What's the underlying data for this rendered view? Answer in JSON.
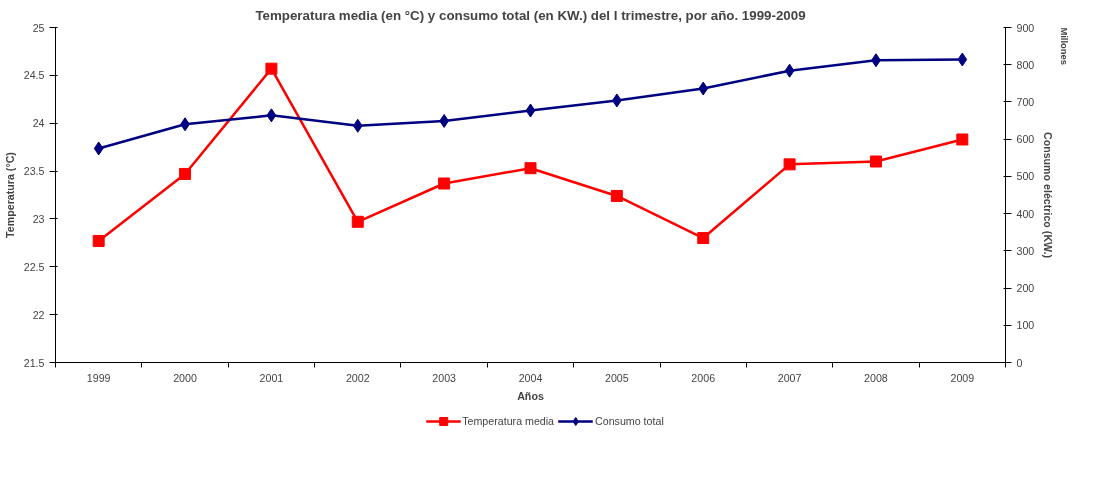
{
  "chart_data": {
    "type": "line",
    "title": "Temperatura media (en °C) y consumo total (en KW.) del I trimestre, por año. 1999-2009",
    "xlabel": "Años",
    "ylabel": "Temperatura (°C)",
    "y2label": "Consumo eléctrico (KW.)",
    "annotations": [
      "Millones"
    ],
    "categories": [
      "1999",
      "2000",
      "2001",
      "2002",
      "2003",
      "2004",
      "2005",
      "2006",
      "2007",
      "2008",
      "2009"
    ],
    "series": [
      {
        "name": "Temperatura media",
        "color": "#ff0000",
        "marker": "square",
        "values": [
          22.77,
          23.47,
          24.57,
          22.97,
          23.37,
          23.53,
          23.24,
          22.8,
          23.57,
          23.6,
          23.83
        ]
      },
      {
        "name": "Consumo total",
        "color": "#000080",
        "marker": "diamond",
        "axis": "y2",
        "values": [
          575,
          640,
          664,
          636,
          649,
          677,
          704,
          736,
          784,
          812,
          814
        ]
      }
    ],
    "ylim": [
      21.5,
      25
    ],
    "yticks": [
      21.5,
      22,
      22.5,
      23,
      23.5,
      24,
      24.5,
      25
    ],
    "y2lim": [
      0,
      900
    ],
    "y2ticks": [
      0,
      100,
      200,
      300,
      400,
      500,
      600,
      700,
      800,
      900
    ],
    "grid": false,
    "legend": "bottom",
    "line_style": "solid"
  }
}
